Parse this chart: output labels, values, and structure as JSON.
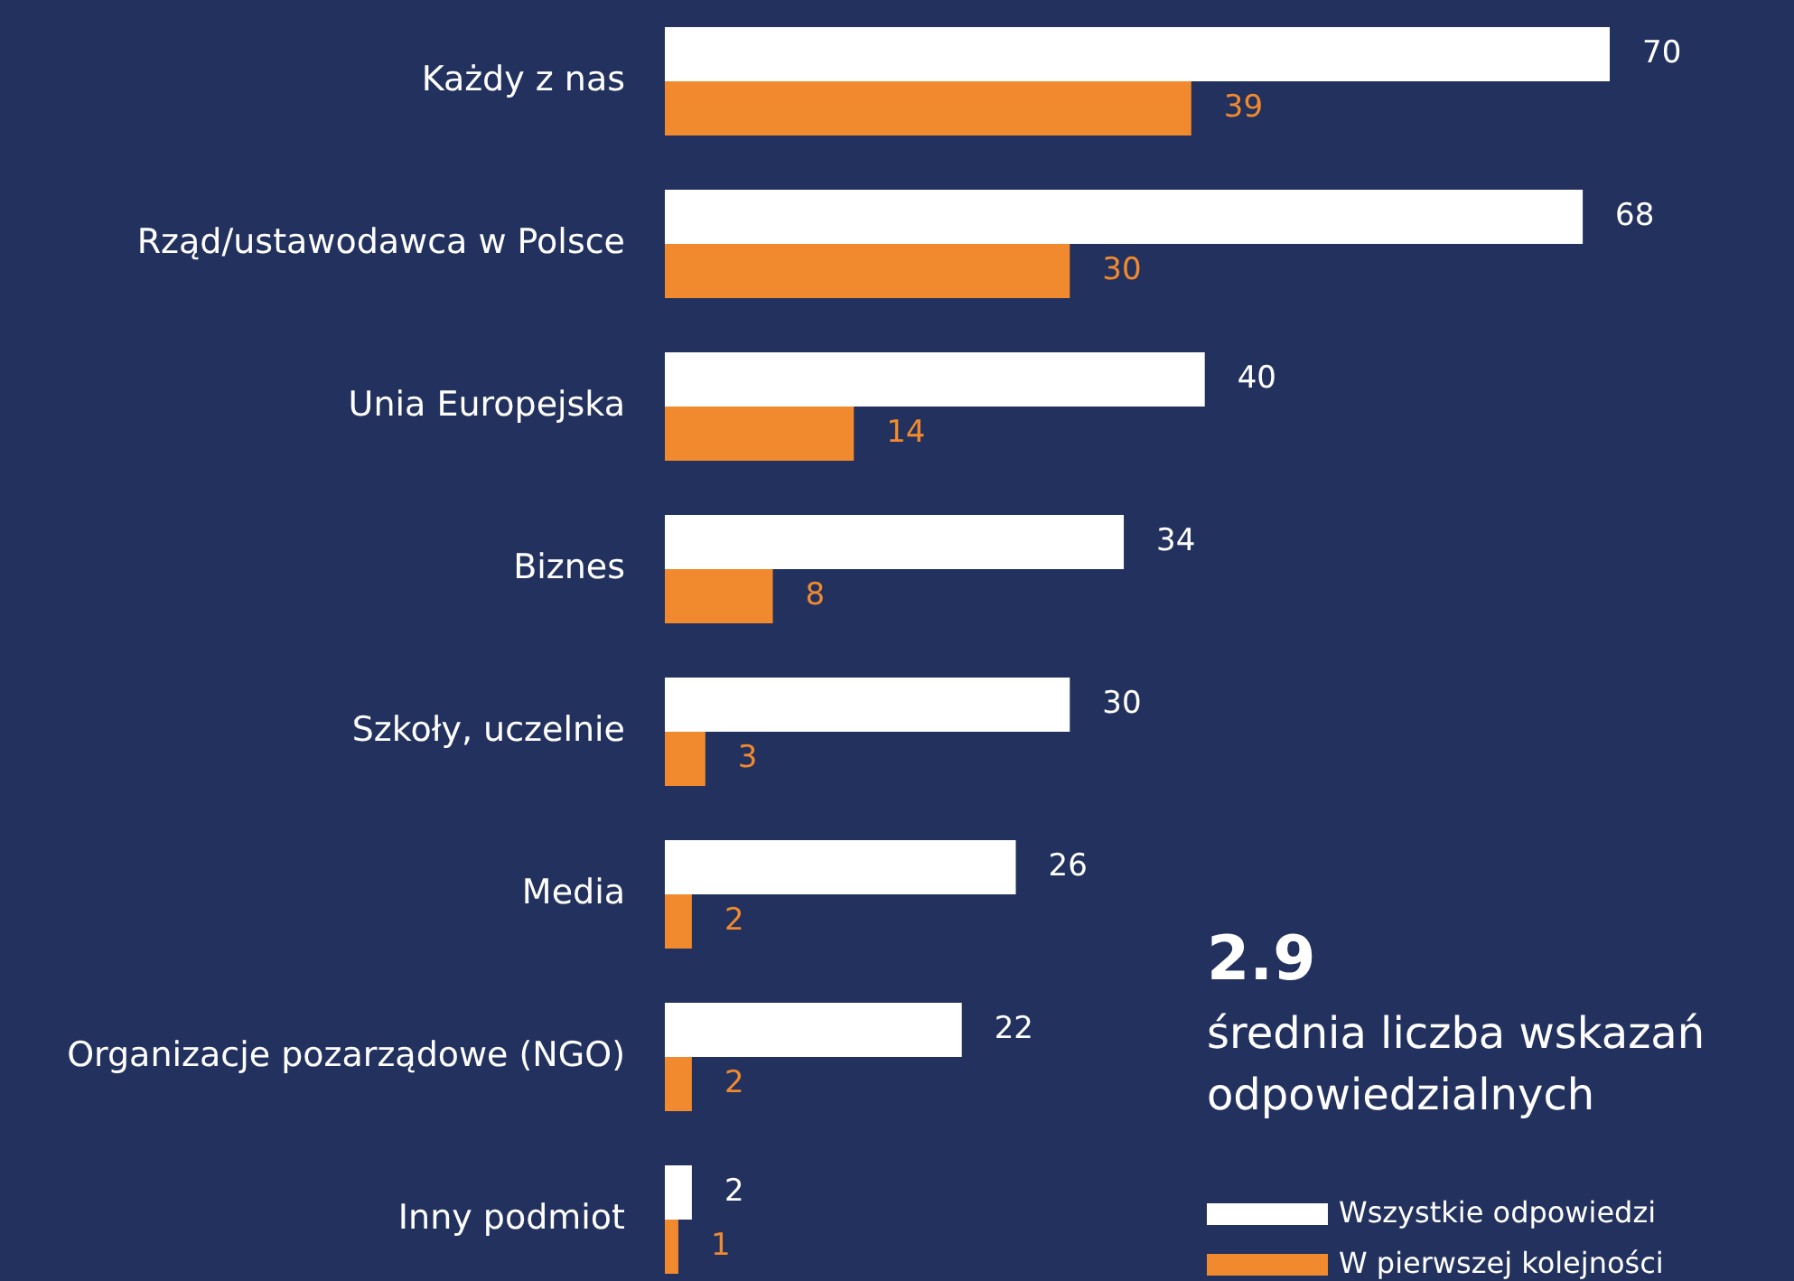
{
  "chart_data": {
    "type": "bar",
    "orientation": "horizontal",
    "categories": [
      "Każdy z nas",
      "Rząd/ustawodawca w Polsce",
      "Unia Europejska",
      "Biznes",
      "Szkoły, uczelnie",
      "Media",
      "Organizacje pozarządowe (NGO)",
      "Inny podmiot"
    ],
    "series": [
      {
        "name": "Wszystkie odpowiedzi",
        "color": "#ffffff",
        "values": [
          70,
          68,
          40,
          34,
          30,
          26,
          22,
          2
        ]
      },
      {
        "name": "W pierwszej kolejności",
        "color": "#f18a2e",
        "values": [
          39,
          30,
          14,
          8,
          3,
          2,
          2,
          1
        ]
      }
    ],
    "data_labels": true,
    "legend": "bottom right",
    "annotations": [
      "2.9",
      "średnia liczba wskazań odpowiedzialnych"
    ]
  }
}
